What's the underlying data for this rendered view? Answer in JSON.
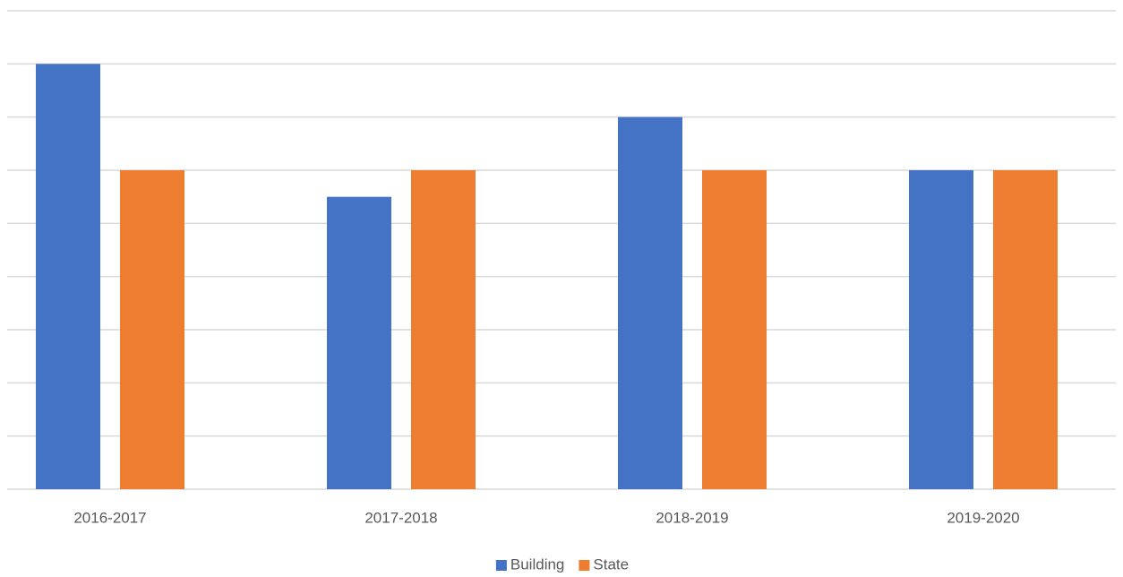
{
  "chart_data": {
    "type": "bar",
    "categories": [
      "2016-2017",
      "2017-2018",
      "2018-2019",
      "2019-2020"
    ],
    "series": [
      {
        "name": "Building",
        "color": "#4472c4",
        "values": [
          8,
          5.5,
          7,
          6
        ]
      },
      {
        "name": "State",
        "color": "#ed7d31",
        "values": [
          6,
          6,
          6,
          6
        ]
      }
    ],
    "ylim": [
      0,
      9
    ],
    "yticks": [
      0,
      1,
      2,
      3,
      4,
      5,
      6,
      7,
      8,
      9
    ],
    "grid": true,
    "legend": "bottom"
  }
}
